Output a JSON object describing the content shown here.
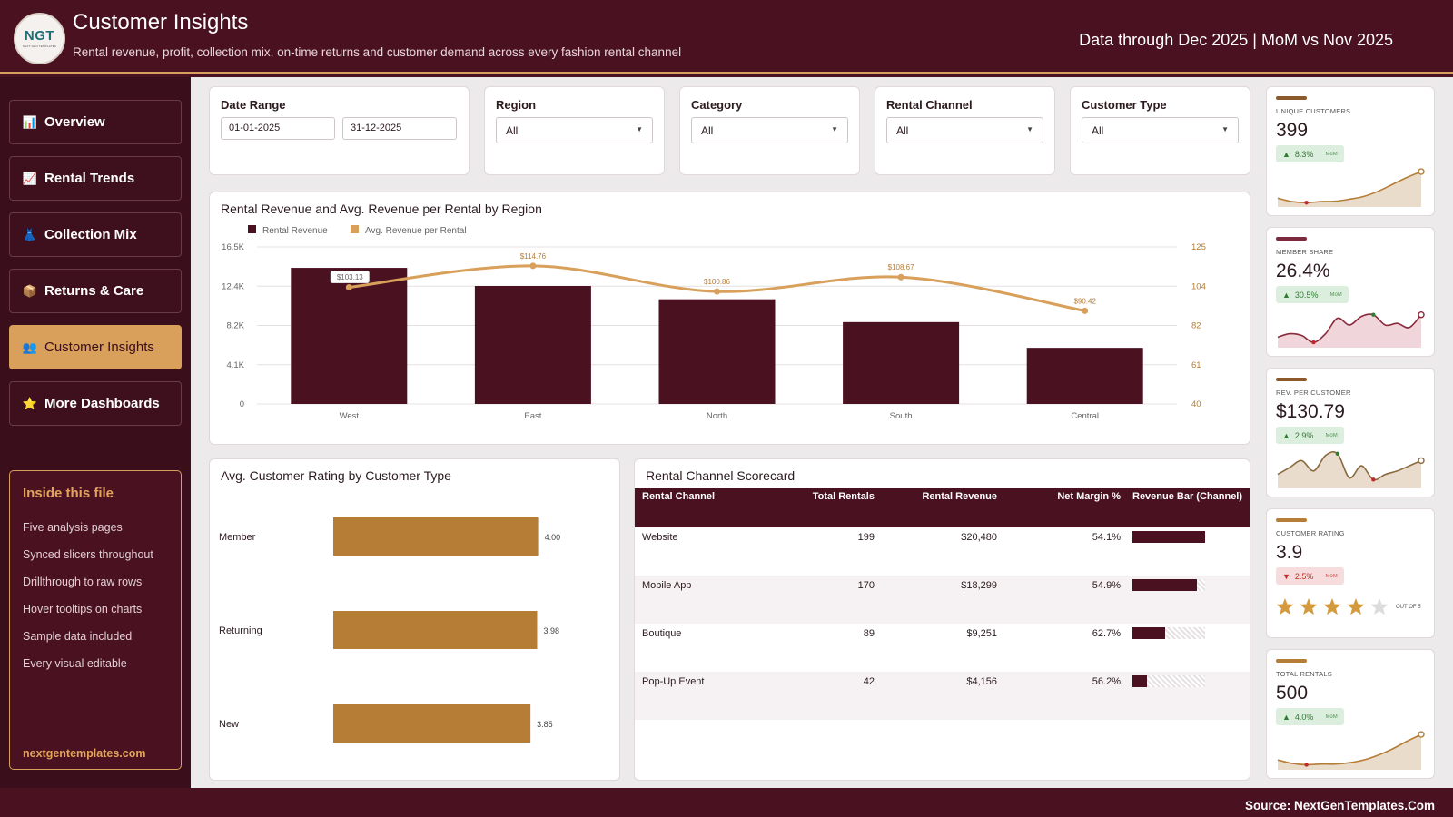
{
  "header": {
    "logo_text": "NGT",
    "logo_sub": "NEXT GEN TEMPLATES",
    "title": "Customer Insights",
    "subtitle": "Rental revenue, profit, collection mix, on-time returns and customer demand across every fashion rental channel",
    "data_through": "Data through Dec 2025 | MoM vs Nov 2025"
  },
  "sidebar": {
    "items": [
      {
        "label": "Overview",
        "icon": "bar-chart-icon",
        "glyph": "📊"
      },
      {
        "label": "Rental Trends",
        "icon": "trend-chart-icon",
        "glyph": "📈"
      },
      {
        "label": "Collection Mix",
        "icon": "dress-icon",
        "glyph": "👗"
      },
      {
        "label": "Returns & Care",
        "icon": "package-icon",
        "glyph": "📦"
      },
      {
        "label": "Customer Insights",
        "icon": "people-icon",
        "glyph": "👥"
      },
      {
        "label": "More Dashboards",
        "icon": "star-icon",
        "glyph": "⭐"
      }
    ],
    "active_index": 4,
    "info": {
      "title": "Inside this file",
      "lines": [
        "Five analysis pages",
        "Synced slicers throughout",
        "Drillthrough to raw rows",
        "Hover tooltips on charts",
        "Sample data included",
        "Every visual editable"
      ],
      "link": "nextgentemplates.com"
    }
  },
  "slicers": {
    "date_range": {
      "label": "Date Range",
      "start": "01-01-2025",
      "end": "31-12-2025"
    },
    "region": {
      "label": "Region",
      "value": "All"
    },
    "category": {
      "label": "Category",
      "value": "All"
    },
    "rental_channel": {
      "label": "Rental Channel",
      "value": "All"
    },
    "customer_type": {
      "label": "Customer Type",
      "value": "All"
    }
  },
  "colors": {
    "brand": "#4a1220",
    "accent": "#d8a05a",
    "bar_gold": "#b57d35",
    "positive": "#2e7d32",
    "negative": "#c62828"
  },
  "region_chart": {
    "title": "Rental Revenue and Avg. Revenue per Rental by Region",
    "chart_data": {
      "type": "bar",
      "categories": [
        "West",
        "East",
        "North",
        "South",
        "Central"
      ],
      "series": [
        {
          "name": "Rental Revenue",
          "type": "bar",
          "axis": "left",
          "values": [
            14300,
            12400,
            11000,
            8600,
            5900
          ]
        },
        {
          "name": "Avg. Revenue per Rental",
          "type": "line",
          "axis": "right",
          "values": [
            103.13,
            114.76,
            100.86,
            108.67,
            90.42
          ],
          "labels": [
            "$103.13",
            "$114.76",
            "$100.86",
            "$108.67",
            "$90.42"
          ]
        }
      ],
      "ylim_left": [
        0,
        16500
      ],
      "yticks_left": [
        "0",
        "4.1K",
        "8.2K",
        "12.4K",
        "16.5K"
      ],
      "ylim_right": [
        40,
        125
      ],
      "yticks_right": [
        "40",
        "61",
        "82",
        "104",
        "125"
      ],
      "legend": "top-left",
      "grid": true
    }
  },
  "rating_chart": {
    "title": "Avg. Customer Rating by Customer Type",
    "chart_data": {
      "type": "bar",
      "orientation": "horizontal",
      "categories": [
        "Member",
        "Returning",
        "New"
      ],
      "values": [
        4.0,
        3.98,
        3.85
      ],
      "labels": [
        "4.00",
        "3.98",
        "3.85"
      ],
      "xlim": [
        0,
        5
      ]
    }
  },
  "scorecard": {
    "title": "Rental Channel Scorecard",
    "columns": [
      "Rental Channel",
      "Total Rentals",
      "Rental Revenue",
      "Net Margin %",
      "Revenue Bar (Channel)"
    ],
    "rows": [
      {
        "channel": "Website",
        "rentals": "199",
        "revenue": "$20,480",
        "margin": "54.1%",
        "bar_fraction": 1.0
      },
      {
        "channel": "Mobile App",
        "rentals": "170",
        "revenue": "$18,299",
        "margin": "54.9%",
        "bar_fraction": 0.893
      },
      {
        "channel": "Boutique",
        "rentals": "89",
        "revenue": "$9,251",
        "margin": "62.7%",
        "bar_fraction": 0.452
      },
      {
        "channel": "Pop-Up Event",
        "rentals": "42",
        "revenue": "$4,156",
        "margin": "56.2%",
        "bar_fraction": 0.203
      }
    ]
  },
  "kpis": [
    {
      "label": "UNIQUE CUSTOMERS",
      "value": "399",
      "delta": "8.3%",
      "direction": "up",
      "mom": "MoM",
      "spark_color": "#b57d35",
      "spark_fill": "#eadccb",
      "spark": [
        0.15,
        0.05,
        0.02,
        0.05,
        0.06,
        0.12,
        0.2,
        0.35,
        0.55,
        0.75,
        0.92
      ]
    },
    {
      "label": "MEMBER SHARE",
      "value": "26.4%",
      "delta": "30.5%",
      "direction": "up",
      "mom": "MoM",
      "spark_color": "#8a2a3c",
      "spark_fill": "#f0d6da",
      "spark": [
        0.2,
        0.3,
        0.25,
        0.05,
        0.3,
        0.75,
        0.55,
        0.8,
        0.85,
        0.55,
        0.6,
        0.48,
        0.85
      ]
    },
    {
      "label": "REV. PER CUSTOMER",
      "value": "$130.79",
      "delta": "2.9%",
      "direction": "up",
      "mom": "MoM",
      "spark_color": "#8a6a40",
      "spark_fill": "#e9dccd",
      "spark": [
        0.3,
        0.5,
        0.7,
        0.4,
        0.85,
        0.9,
        0.2,
        0.55,
        0.15,
        0.3,
        0.4,
        0.55,
        0.7
      ]
    },
    {
      "label": "CUSTOMER RATING",
      "value": "3.9",
      "delta": "2.5%",
      "direction": "down",
      "mom": "MoM",
      "stars": 3.9,
      "stars_caption": "OUT OF 5"
    },
    {
      "label": "TOTAL RENTALS",
      "value": "500",
      "delta": "4.0%",
      "direction": "up",
      "mom": "MoM",
      "spark_color": "#b57d35",
      "spark_fill": "#eadccb",
      "spark": [
        0.18,
        0.08,
        0.04,
        0.06,
        0.06,
        0.1,
        0.18,
        0.32,
        0.5,
        0.72,
        0.92
      ]
    }
  ],
  "footer": {
    "source": "Source: NextGenTemplates.Com"
  }
}
